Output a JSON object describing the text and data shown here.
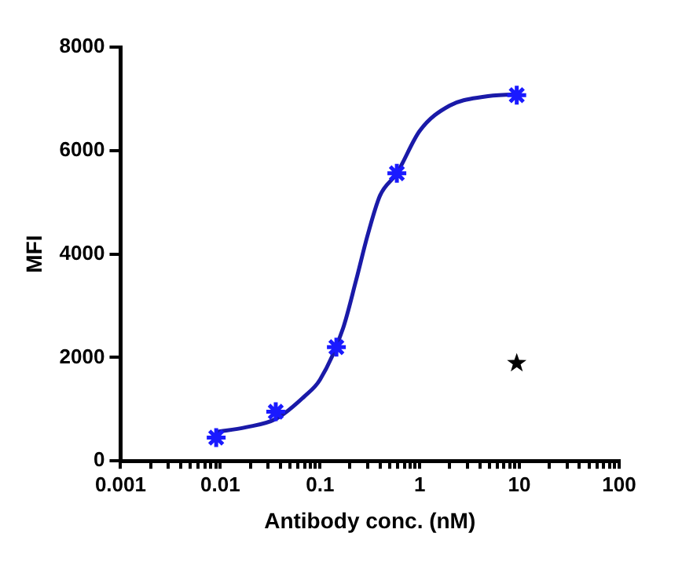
{
  "chart_data": {
    "type": "scatter",
    "xlabel": "Antibody conc. (nM)",
    "ylabel": "MFI",
    "log": "x",
    "grid": false,
    "legend": false,
    "xlim": [
      0.001,
      100
    ],
    "ylim": [
      0,
      8000
    ],
    "yticks": [
      0,
      2000,
      4000,
      6000,
      8000
    ],
    "xticks": [
      0.001,
      {
        "value": 0.002,
        "label": null
      },
      {
        "value": 0.003,
        "label": null
      },
      {
        "value": 0.004,
        "label": null
      },
      {
        "value": 0.005,
        "label": null
      },
      {
        "value": 0.006,
        "label": null
      },
      {
        "value": 0.007,
        "label": null
      },
      {
        "value": 0.008,
        "label": null
      },
      {
        "value": 0.009,
        "label": null
      },
      0.01,
      {
        "value": 0.02,
        "label": null
      },
      {
        "value": 0.03,
        "label": null
      },
      {
        "value": 0.04,
        "label": null
      },
      {
        "value": 0.05,
        "label": null
      },
      {
        "value": 0.06,
        "label": null
      },
      {
        "value": 0.07,
        "label": null
      },
      {
        "value": 0.08,
        "label": null
      },
      {
        "value": 0.09,
        "label": null
      },
      0.1,
      {
        "value": 0.2,
        "label": null
      },
      {
        "value": 0.3,
        "label": null
      },
      {
        "value": 0.4,
        "label": null
      },
      {
        "value": 0.5,
        "label": null
      },
      {
        "value": 0.6,
        "label": null
      },
      {
        "value": 0.7,
        "label": null
      },
      {
        "value": 0.8,
        "label": null
      },
      {
        "value": 0.9,
        "label": null
      },
      1,
      {
        "value": 2,
        "label": null
      },
      {
        "value": 3,
        "label": null
      },
      {
        "value": 4,
        "label": null
      },
      {
        "value": 5,
        "label": null
      },
      {
        "value": 6,
        "label": null
      },
      {
        "value": 7,
        "label": null
      },
      {
        "value": 8,
        "label": null
      },
      {
        "value": 9,
        "label": null
      },
      10,
      {
        "value": 20,
        "label": null
      },
      {
        "value": 30,
        "label": null
      },
      {
        "value": 40,
        "label": null
      },
      {
        "value": 50,
        "label": null
      },
      {
        "value": 60,
        "label": null
      },
      {
        "value": 70,
        "label": null
      },
      {
        "value": 80,
        "label": null
      },
      {
        "value": 90,
        "label": null
      },
      100
    ],
    "series": [
      {
        "type": "line",
        "marker": "none",
        "color": "#1a1aa8",
        "x": [
          0.0091,
          0.018,
          0.036,
          0.07,
          0.1,
          0.17,
          0.23,
          0.3,
          0.4,
          0.59,
          1,
          2,
          4.4,
          9.4
        ],
        "values": [
          560,
          650,
          810,
          1250,
          1570,
          2560,
          3490,
          4360,
          5130,
          5560,
          6380,
          6870,
          7040,
          7090
        ]
      },
      {
        "type": "scatter",
        "marker": "cross",
        "color": "#1a1aff",
        "x": [
          0.0091,
          0.036,
          0.146,
          0.59,
          9.4
        ],
        "values": [
          450,
          950,
          2200,
          5560,
          7070
        ]
      },
      {
        "type": "scatter",
        "marker": "star",
        "color": "#000000",
        "x": [
          9.4
        ],
        "values": [
          1890
        ]
      }
    ]
  }
}
